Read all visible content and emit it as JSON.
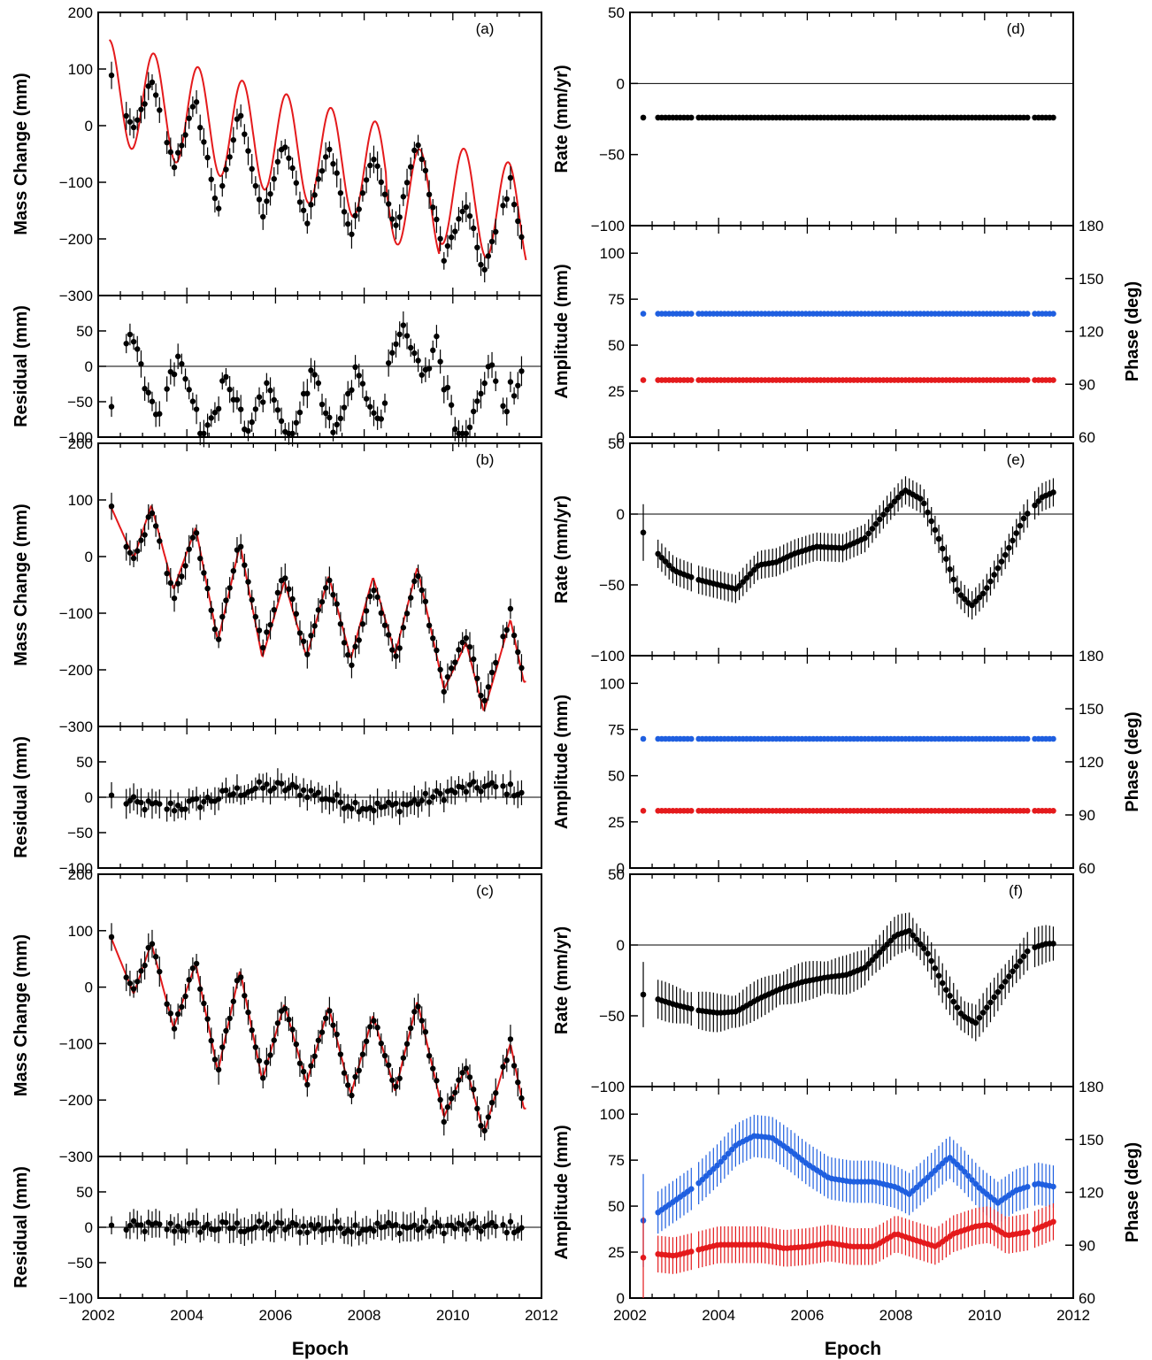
{
  "x_axis": {
    "label": "Epoch",
    "ticks": [
      "2002",
      "2004",
      "2006",
      "2008",
      "2010",
      "2012"
    ],
    "range": [
      2002,
      2012
    ]
  },
  "colors": {
    "data": "#000000",
    "model": "#e41a1c",
    "amplitude": "#e41a1c",
    "phase": "#1f5fe0"
  },
  "left_panels": [
    {
      "id": "a",
      "label": "(a)",
      "model": "a"
    },
    {
      "id": "b",
      "label": "(b)",
      "model": "b"
    },
    {
      "id": "c",
      "label": "(c)",
      "model": "c"
    }
  ],
  "right_panels": [
    {
      "id": "d",
      "label": "(d)",
      "rate": "const",
      "amp": "const"
    },
    {
      "id": "e",
      "label": "(e)",
      "rate": "e",
      "amp": "const"
    },
    {
      "id": "f",
      "label": "(f)",
      "rate": "f",
      "amp": "f"
    }
  ],
  "axis_labels": {
    "mass": "Mass Change (mm)",
    "residual": "Residual (mm)",
    "rate": "Rate (mm/yr)",
    "amplitude": "Amplitude (mm)",
    "phase": "Phase (deg)"
  },
  "mass_ticks": [
    "200",
    "100",
    "0",
    "−100",
    "−200",
    "−300"
  ],
  "mass_tick_values": [
    200,
    100,
    0,
    -100,
    -200,
    -300
  ],
  "mass_ylim": [
    -300,
    200
  ],
  "residual_ticks": [
    "50",
    "0",
    "−50",
    "−100"
  ],
  "residual_tick_values": [
    50,
    0,
    -50,
    -100
  ],
  "residual_ylim": [
    -100,
    100
  ],
  "rate_ticks": [
    "50",
    "0",
    "−50",
    "−100"
  ],
  "rate_tick_values": [
    50,
    0,
    -50,
    -100
  ],
  "rate_ylim": [
    -100,
    50
  ],
  "amplitude_ticks": [
    "100",
    "75",
    "50",
    "25",
    "0"
  ],
  "amplitude_tick_values": [
    100,
    75,
    50,
    25,
    0
  ],
  "amplitude_ylim": [
    0,
    115
  ],
  "phase_ticks": [
    "180",
    "150",
    "120",
    "90",
    "60"
  ],
  "phase_tick_values": [
    180,
    150,
    120,
    90,
    60
  ],
  "phase_ylim": [
    60,
    180
  ],
  "chart_data": {
    "type": "scatter",
    "x_range": [
      2002,
      2012
    ],
    "mass_series": {
      "name": "Mass Change",
      "model": "annual sinusoid with trend",
      "key_values": [
        {
          "x": 2002.3,
          "y": 86
        },
        {
          "x": 2002.8,
          "y": -12
        },
        {
          "x": 2003.2,
          "y": 78
        },
        {
          "x": 2003.7,
          "y": -72
        },
        {
          "x": 2004.2,
          "y": 42
        },
        {
          "x": 2004.7,
          "y": -150
        },
        {
          "x": 2005.2,
          "y": 30
        },
        {
          "x": 2005.7,
          "y": -165
        },
        {
          "x": 2006.2,
          "y": -30
        },
        {
          "x": 2006.7,
          "y": -170
        },
        {
          "x": 2007.2,
          "y": -35
        },
        {
          "x": 2007.7,
          "y": -190
        },
        {
          "x": 2008.2,
          "y": -50
        },
        {
          "x": 2008.7,
          "y": -185
        },
        {
          "x": 2009.2,
          "y": -25
        },
        {
          "x": 2009.8,
          "y": -230
        },
        {
          "x": 2010.3,
          "y": -140
        },
        {
          "x": 2010.7,
          "y": -260
        },
        {
          "x": 2011.3,
          "y": -100
        },
        {
          "x": 2011.6,
          "y": -215
        }
      ]
    },
    "right_constant_values": {
      "d_rate": -24,
      "amplitude": 31,
      "phase_d": 130,
      "phase_e": 133
    },
    "rate_e": [
      {
        "x": 2002.3,
        "y": -13
      },
      {
        "x": 2002.6,
        "y": -27
      },
      {
        "x": 2003.0,
        "y": -40
      },
      {
        "x": 2003.5,
        "y": -46
      },
      {
        "x": 2004.0,
        "y": -50
      },
      {
        "x": 2004.4,
        "y": -53
      },
      {
        "x": 2004.9,
        "y": -36
      },
      {
        "x": 2005.3,
        "y": -34
      },
      {
        "x": 2005.7,
        "y": -28
      },
      {
        "x": 2006.2,
        "y": -23
      },
      {
        "x": 2006.8,
        "y": -24
      },
      {
        "x": 2007.3,
        "y": -17
      },
      {
        "x": 2007.8,
        "y": 3
      },
      {
        "x": 2008.2,
        "y": 17
      },
      {
        "x": 2008.6,
        "y": 10
      },
      {
        "x": 2009.0,
        "y": -20
      },
      {
        "x": 2009.4,
        "y": -55
      },
      {
        "x": 2009.7,
        "y": -65
      },
      {
        "x": 2010.0,
        "y": -55
      },
      {
        "x": 2010.5,
        "y": -27
      },
      {
        "x": 2010.9,
        "y": -2
      },
      {
        "x": 2011.3,
        "y": 12
      },
      {
        "x": 2011.6,
        "y": 16
      }
    ],
    "rate_f": [
      {
        "x": 2002.3,
        "y": -35
      },
      {
        "x": 2002.6,
        "y": -38
      },
      {
        "x": 2003.0,
        "y": -42
      },
      {
        "x": 2003.5,
        "y": -46
      },
      {
        "x": 2004.0,
        "y": -48
      },
      {
        "x": 2004.4,
        "y": -47
      },
      {
        "x": 2004.9,
        "y": -38
      },
      {
        "x": 2005.4,
        "y": -31
      },
      {
        "x": 2005.9,
        "y": -26
      },
      {
        "x": 2006.4,
        "y": -23
      },
      {
        "x": 2006.9,
        "y": -21
      },
      {
        "x": 2007.3,
        "y": -16
      },
      {
        "x": 2007.7,
        "y": -3
      },
      {
        "x": 2008.0,
        "y": 7
      },
      {
        "x": 2008.3,
        "y": 10
      },
      {
        "x": 2008.7,
        "y": -5
      },
      {
        "x": 2009.1,
        "y": -30
      },
      {
        "x": 2009.5,
        "y": -50
      },
      {
        "x": 2009.8,
        "y": -55
      },
      {
        "x": 2010.1,
        "y": -42
      },
      {
        "x": 2010.6,
        "y": -20
      },
      {
        "x": 2011.0,
        "y": -3
      },
      {
        "x": 2011.4,
        "y": 1
      },
      {
        "x": 2011.6,
        "y": 1
      }
    ],
    "phase_f": [
      {
        "x": 2002.3,
        "y": 104
      },
      {
        "x": 2002.6,
        "y": 108
      },
      {
        "x": 2003.0,
        "y": 115
      },
      {
        "x": 2003.5,
        "y": 124
      },
      {
        "x": 2004.0,
        "y": 136
      },
      {
        "x": 2004.4,
        "y": 147
      },
      {
        "x": 2004.8,
        "y": 152
      },
      {
        "x": 2005.2,
        "y": 151
      },
      {
        "x": 2005.6,
        "y": 144
      },
      {
        "x": 2006.0,
        "y": 136
      },
      {
        "x": 2006.5,
        "y": 128
      },
      {
        "x": 2007.0,
        "y": 126
      },
      {
        "x": 2007.5,
        "y": 126
      },
      {
        "x": 2008.0,
        "y": 123
      },
      {
        "x": 2008.3,
        "y": 119
      },
      {
        "x": 2008.7,
        "y": 128
      },
      {
        "x": 2009.2,
        "y": 140
      },
      {
        "x": 2009.5,
        "y": 133
      },
      {
        "x": 2009.9,
        "y": 122
      },
      {
        "x": 2010.3,
        "y": 114
      },
      {
        "x": 2010.7,
        "y": 121
      },
      {
        "x": 2011.2,
        "y": 125
      },
      {
        "x": 2011.6,
        "y": 123
      }
    ],
    "amplitude_f": [
      {
        "x": 2002.3,
        "y": 22
      },
      {
        "x": 2002.6,
        "y": 24
      },
      {
        "x": 2003.0,
        "y": 23
      },
      {
        "x": 2003.5,
        "y": 26
      },
      {
        "x": 2004.0,
        "y": 29
      },
      {
        "x": 2004.5,
        "y": 29
      },
      {
        "x": 2005.0,
        "y": 29
      },
      {
        "x": 2005.5,
        "y": 27
      },
      {
        "x": 2006.0,
        "y": 28
      },
      {
        "x": 2006.5,
        "y": 30
      },
      {
        "x": 2007.0,
        "y": 28
      },
      {
        "x": 2007.5,
        "y": 28
      },
      {
        "x": 2008.0,
        "y": 35
      },
      {
        "x": 2008.5,
        "y": 31
      },
      {
        "x": 2008.9,
        "y": 28
      },
      {
        "x": 2009.3,
        "y": 35
      },
      {
        "x": 2009.8,
        "y": 39
      },
      {
        "x": 2010.1,
        "y": 40
      },
      {
        "x": 2010.5,
        "y": 34
      },
      {
        "x": 2011.0,
        "y": 36
      },
      {
        "x": 2011.6,
        "y": 42
      }
    ]
  }
}
